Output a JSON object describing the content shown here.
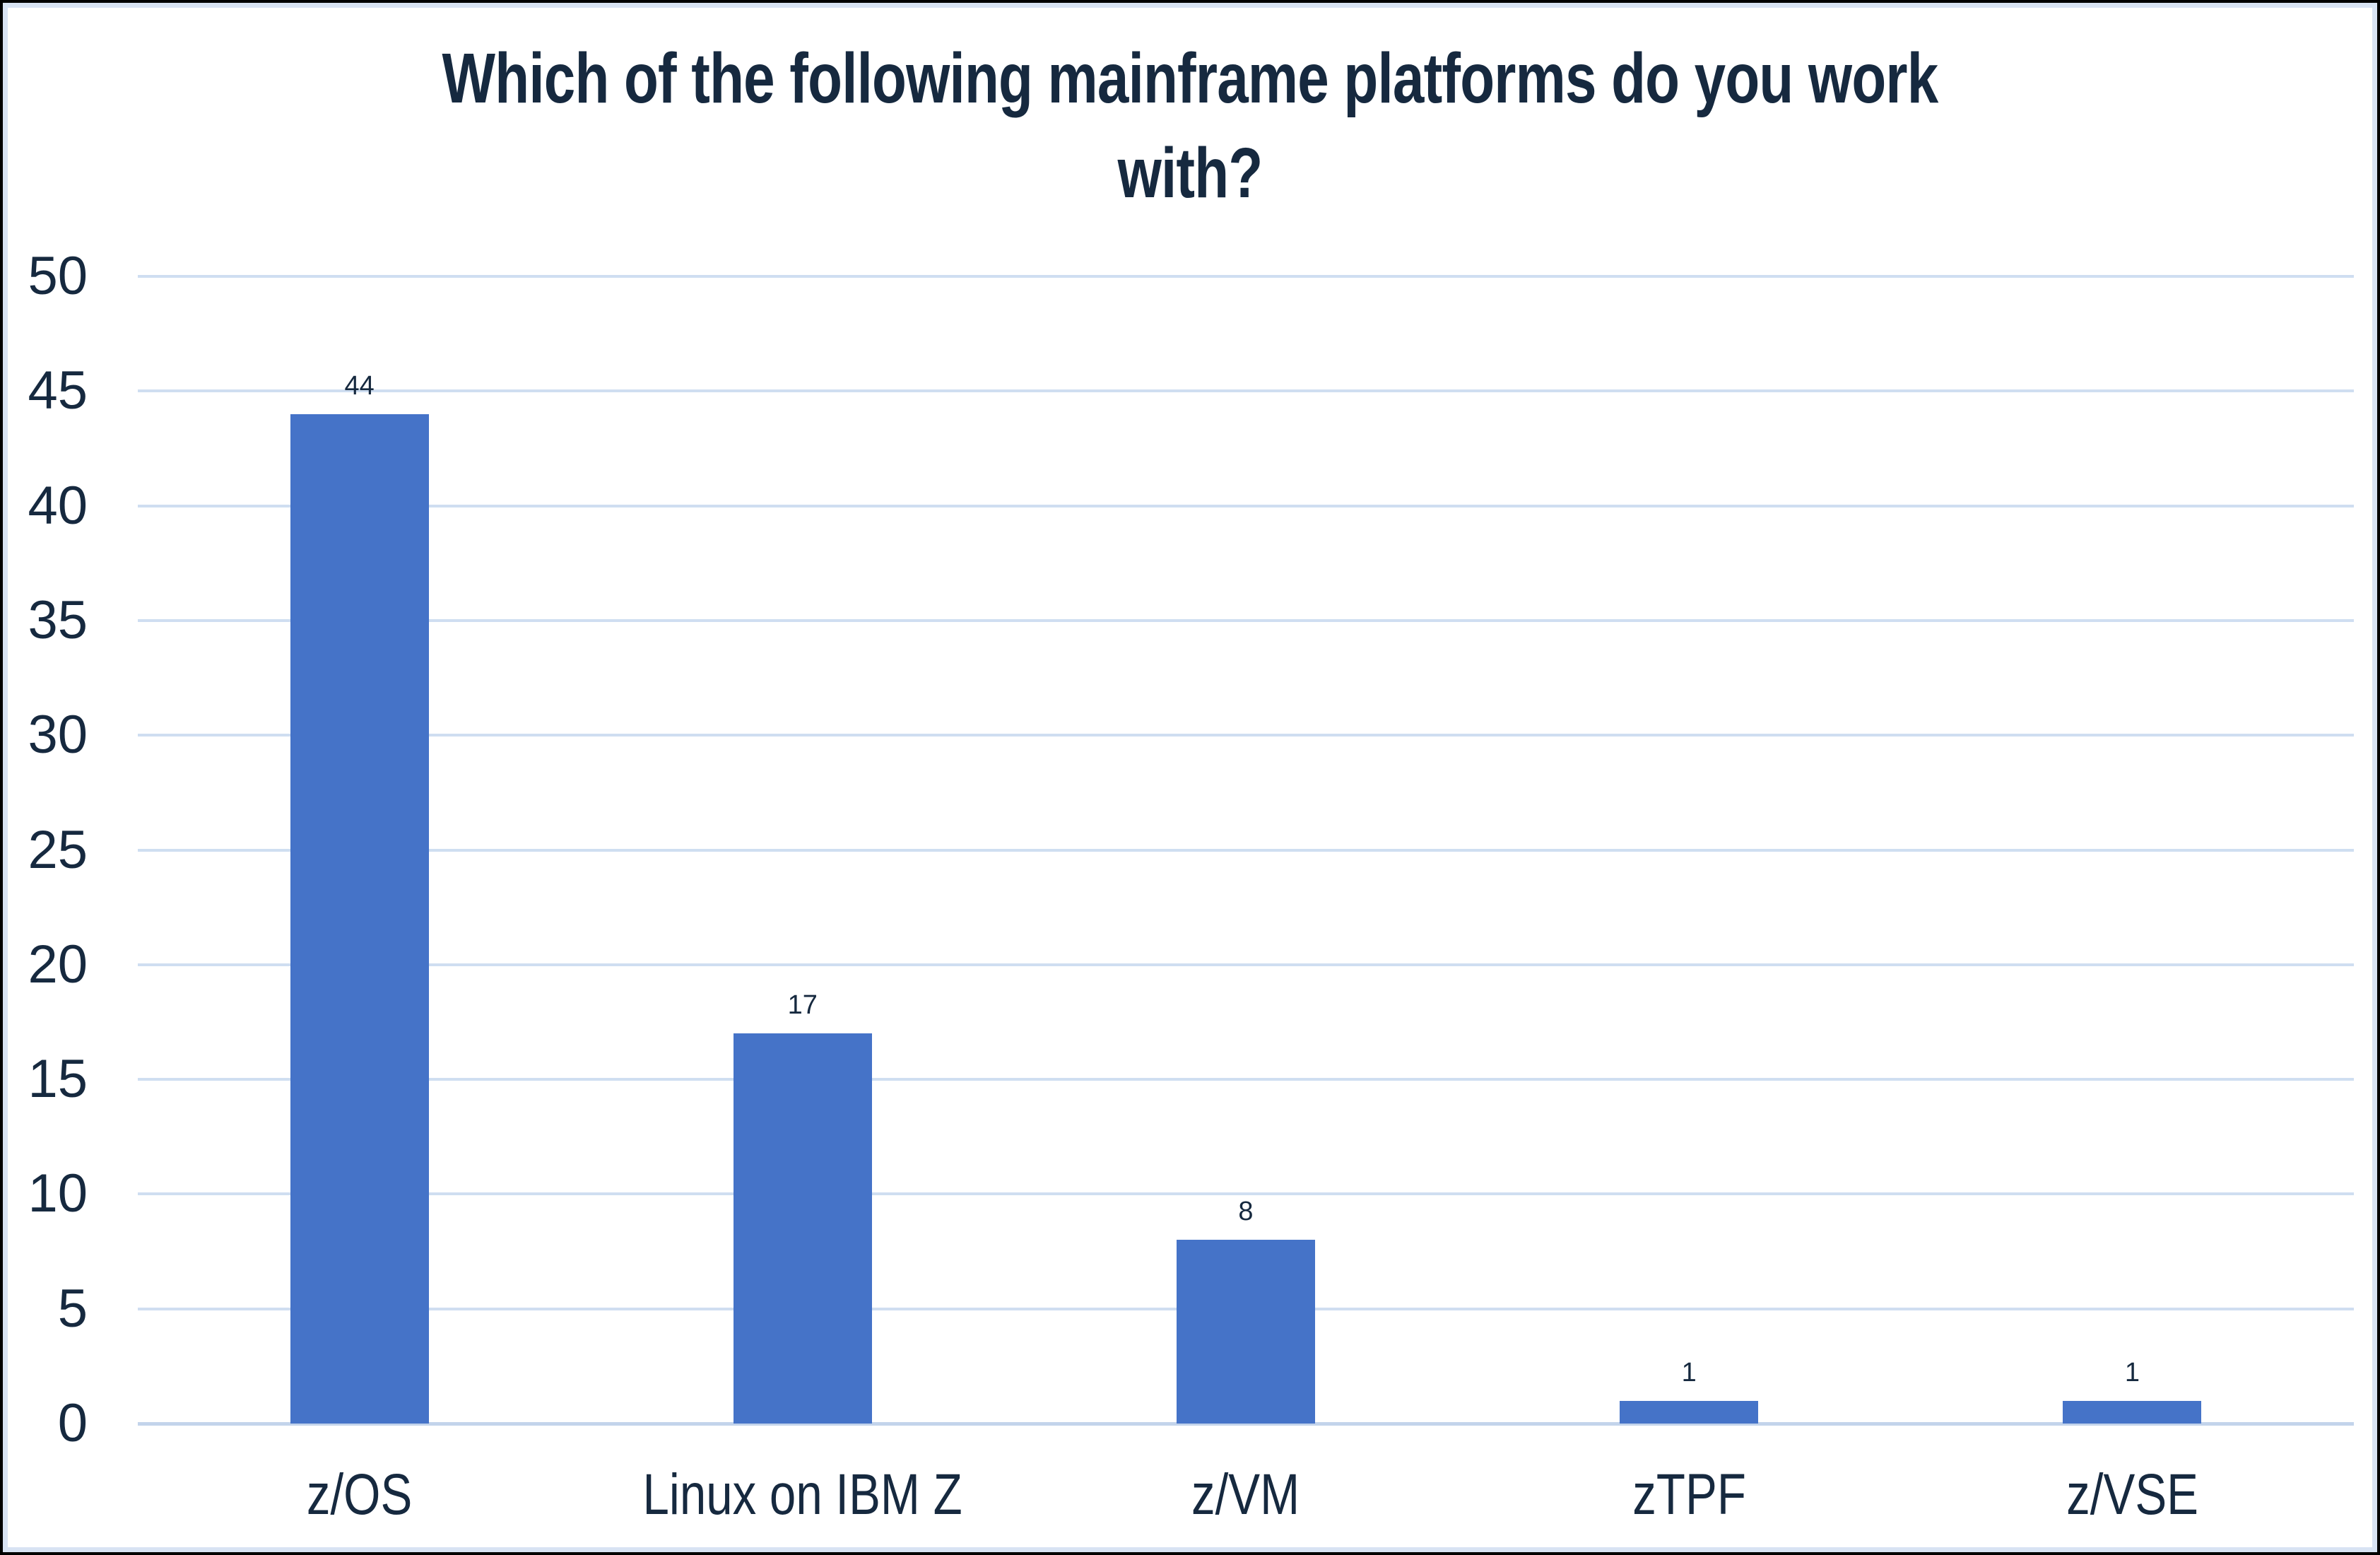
{
  "chart_data": {
    "type": "bar",
    "title": "Which of the following mainframe platforms do you work with?",
    "title_lines": [
      "Which of the following mainframe platforms do you work",
      "with?"
    ],
    "categories": [
      "z/OS",
      "Linux on IBM Z",
      "z/VM",
      "zTPF",
      "z/VSE"
    ],
    "values": [
      44,
      17,
      8,
      1,
      1
    ],
    "data_labels": [
      "44",
      "17",
      "8",
      "1",
      "1"
    ],
    "xlabel": "",
    "ylabel": "",
    "ylim": [
      0,
      50
    ],
    "yticks": [
      0,
      5,
      10,
      15,
      20,
      25,
      30,
      35,
      40,
      45,
      50
    ],
    "ytick_labels": [
      "0",
      "5",
      "10",
      "15",
      "20",
      "25",
      "30",
      "35",
      "40",
      "45",
      "50"
    ],
    "grid": true,
    "legend": false,
    "colors": {
      "bar": "#4573c8",
      "title_text": "#16293f",
      "axis_text": "#16293f",
      "gridline": "#cfdef1",
      "axis_line": "#c3d4eb",
      "inner_frame": "#d8e3f3",
      "outer_border": "#000000",
      "background": "#ffffff"
    }
  }
}
